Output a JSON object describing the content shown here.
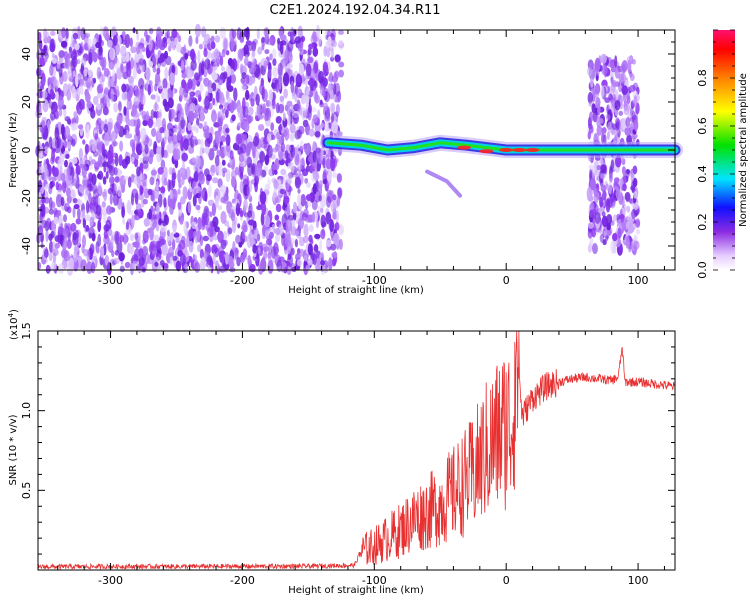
{
  "title": "C2E1.2024.192.04.34.R11",
  "colors": {
    "noise": "#7a2be6",
    "band_core": "#00e0c8",
    "band_peak": "#ff2020",
    "snr_line": "#e83030",
    "axis": "#000000"
  },
  "chart_data": [
    {
      "type": "heatmap",
      "name": "spectrogram",
      "xlabel": "Height of straight line (km)",
      "ylabel": "Frequency (Hz)",
      "xlim": [
        -355,
        128
      ],
      "ylim": [
        -50,
        50
      ],
      "x_ticks": [
        -300,
        -200,
        -100,
        0,
        100
      ],
      "x_tick_labels": [
        "-300",
        "-200",
        "-100",
        "0",
        "100"
      ],
      "y_ticks": [
        40,
        20,
        0,
        -20,
        -40
      ],
      "y_tick_labels": [
        "40",
        "20",
        "0",
        "-20",
        "-40"
      ],
      "noise_region_km": [
        -355,
        -125
      ],
      "secondary_noise_region_km": [
        63,
        100
      ],
      "carrier_band": [
        {
          "x": -135,
          "f": 3
        },
        {
          "x": -110,
          "f": 2
        },
        {
          "x": -90,
          "f": 0
        },
        {
          "x": -70,
          "f": 1
        },
        {
          "x": -50,
          "f": 3
        },
        {
          "x": -30,
          "f": 2
        },
        {
          "x": -15,
          "f": 1
        },
        {
          "x": 0,
          "f": 0
        },
        {
          "x": 30,
          "f": 0
        },
        {
          "x": 60,
          "f": 0
        },
        {
          "x": 100,
          "f": 0
        },
        {
          "x": 128,
          "f": 0
        }
      ],
      "trail": [
        {
          "x": -60,
          "f": -9
        },
        {
          "x": -45,
          "f": -13
        },
        {
          "x": -35,
          "f": -19
        }
      ],
      "colorbar": {
        "label": "Normalized spectral amplitude",
        "range": [
          0,
          1
        ],
        "ticks": [
          0.0,
          0.2,
          0.4,
          0.6,
          0.8
        ],
        "tick_labels": [
          "0.0",
          "0.2",
          "0.4",
          "0.6",
          "0.8"
        ]
      }
    },
    {
      "type": "line",
      "name": "snr",
      "xlabel": "Height of straight line (km)",
      "ylabel": "SNR (10 * v/v)",
      "y_multiplier": "(x10",
      "y_multiplier_exp": "4",
      "y_multiplier_close": ")",
      "xlim": [
        -355,
        128
      ],
      "ylim": [
        0,
        15000
      ],
      "x_ticks": [
        -300,
        -200,
        -100,
        0,
        100
      ],
      "x_tick_labels": [
        "-300",
        "-200",
        "-100",
        "0",
        "100"
      ],
      "y_ticks": [
        5000,
        10000,
        15000
      ],
      "y_tick_labels": [
        "0.5",
        "1.0",
        "1.5"
      ],
      "series": [
        {
          "x": [
            -355,
            -300,
            -250,
            -200,
            -150,
            -115,
            -110,
            -100,
            -90,
            -80,
            -70,
            -60,
            -50,
            -40,
            -30,
            -25,
            -20,
            -15,
            -10,
            -5,
            0,
            5,
            8,
            12,
            20,
            30,
            40,
            50,
            60,
            70,
            80,
            85,
            88,
            90,
            100,
            110,
            120,
            128
          ],
          "y": [
            200,
            220,
            220,
            230,
            240,
            300,
            1200,
            1500,
            2000,
            2500,
            3200,
            3600,
            4100,
            4800,
            5600,
            6000,
            6800,
            7500,
            8000,
            8600,
            9000,
            9300,
            15000,
            9600,
            10800,
            11500,
            11800,
            12000,
            12100,
            12000,
            11900,
            12100,
            14000,
            11800,
            11800,
            11700,
            11600,
            11500
          ]
        }
      ]
    }
  ]
}
